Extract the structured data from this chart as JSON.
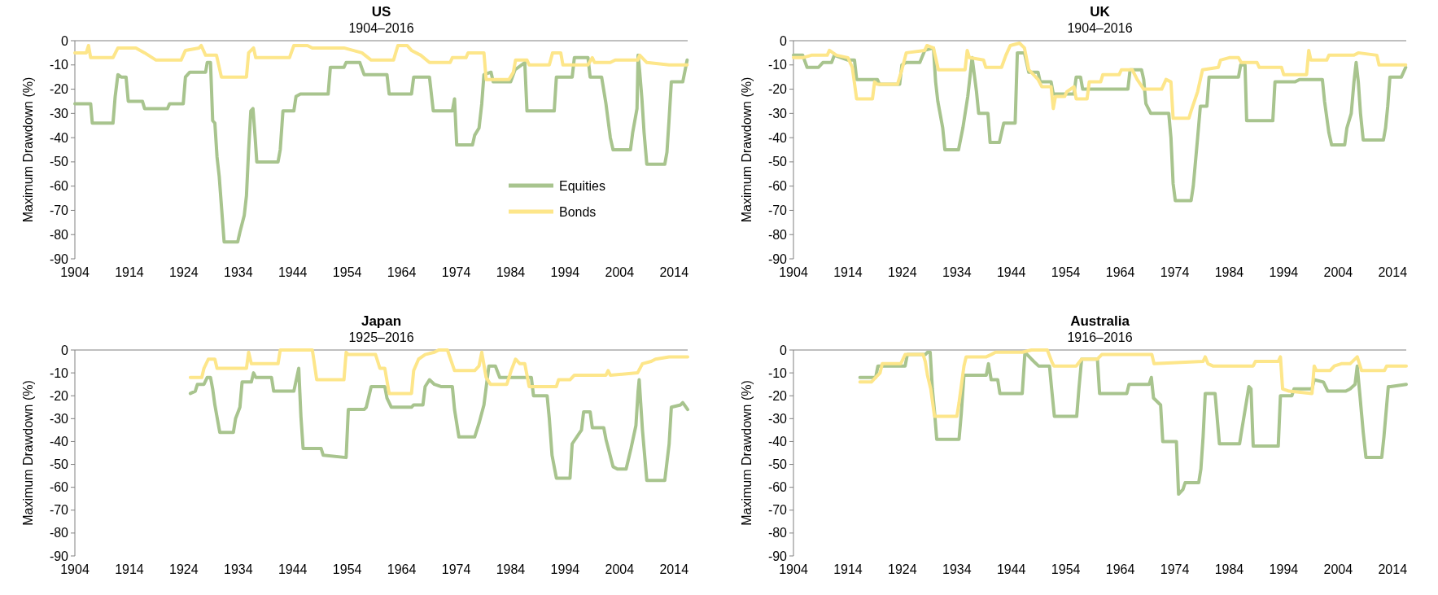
{
  "chart_data": [
    {
      "type": "line",
      "title": "US",
      "subtitle": "1904–2016",
      "ylabel": "Maximum Drawdown (%)",
      "xlim": [
        1904,
        2016.5
      ],
      "xticks": [
        1904,
        1914,
        1924,
        1934,
        1944,
        1954,
        1964,
        1974,
        1984,
        1994,
        2004,
        2014
      ],
      "ylim": [
        -90,
        0
      ],
      "yticks": [
        -90,
        -80,
        -70,
        -60,
        -50,
        -40,
        -30,
        -20,
        -10,
        0
      ],
      "grid": false,
      "legend": "bottom right",
      "line_style": "solid",
      "marker": "none",
      "series": [
        {
          "name": "Equities",
          "color": "#a8c48e",
          "x": [
            1904,
            1906.9,
            1907.2,
            1911,
            1911.4,
            1911.9,
            1912.5,
            1913.4,
            1913.8,
            1916.4,
            1916.8,
            1921,
            1921.4,
            1923.9,
            1924.3,
            1925.1,
            1928,
            1928.3,
            1928.9,
            1929.3,
            1929.7,
            1930.1,
            1930.5,
            1930.9,
            1931.4,
            1933.9,
            1934.3,
            1935.1,
            1935.5,
            1935.9,
            1936.3,
            1936.7,
            1937.1,
            1937.4,
            1941.3,
            1941.7,
            1942.2,
            1944.2,
            1944.6,
            1945.4,
            1950.5,
            1950.9,
            1953.4,
            1953.8,
            1956.3,
            1957.1,
            1961.3,
            1961.7,
            1965.8,
            1966.2,
            1969.1,
            1969.8,
            1973.3,
            1973.7,
            1974.1,
            1977,
            1977.4,
            1978.2,
            1978.7,
            1979.1,
            1980.4,
            1980.8,
            1984,
            1984.8,
            1986.6,
            1987,
            1992,
            1992.4,
            1995.3,
            1995.7,
            1998.2,
            1998.6,
            2000.7,
            2001.5,
            2002.3,
            2002.8,
            2006,
            2006.4,
            2007.2,
            2007.4,
            2007.7,
            2008.1,
            2008.5,
            2009,
            2012.3,
            2012.7,
            2013.1,
            2013.5,
            2015.6,
            2016.4
          ],
          "values": [
            -26,
            -26,
            -34,
            -34,
            -23,
            -14,
            -15,
            -15,
            -25,
            -25,
            -28,
            -28,
            -26,
            -26,
            -15,
            -13,
            -13,
            -9,
            -9,
            -33,
            -34,
            -48,
            -56,
            -68,
            -83,
            -83,
            -79,
            -72,
            -64,
            -45,
            -29,
            -28,
            -40,
            -50,
            -50,
            -45,
            -29,
            -29,
            -23,
            -22,
            -22,
            -11,
            -11,
            -9,
            -9,
            -14,
            -14,
            -22,
            -22,
            -15,
            -15,
            -29,
            -29,
            -24,
            -43,
            -43,
            -39,
            -36,
            -26,
            -14,
            -13,
            -17,
            -17,
            -12,
            -9,
            -29,
            -29,
            -15,
            -15,
            -7,
            -7,
            -15,
            -15,
            -26,
            -40,
            -45,
            -45,
            -38,
            -28,
            -6,
            -13,
            -24,
            -38,
            -51,
            -51,
            -46,
            -32,
            -17,
            -17,
            -8
          ]
        },
        {
          "name": "Bonds",
          "color": "#fde68a",
          "x": [
            1904,
            1906.1,
            1906.5,
            1906.9,
            1911,
            1911.9,
            1915.2,
            1916.8,
            1918.9,
            1923.5,
            1924.3,
            1926.8,
            1927.2,
            1928,
            1930,
            1930.9,
            1935.5,
            1935.9,
            1936.8,
            1937.2,
            1943.4,
            1944.2,
            1946.7,
            1947.6,
            1953.4,
            1956.7,
            1958.4,
            1962.5,
            1963.3,
            1965,
            1965.8,
            1967.5,
            1969.1,
            1972.9,
            1973.3,
            1975.8,
            1976.2,
            1979.1,
            1979.5,
            1983.7,
            1984.5,
            1984.9,
            1987,
            1987.4,
            1991.1,
            1991.7,
            1993.2,
            1993.6,
            1998.2,
            1999,
            1999.4,
            2002.3,
            2003.2,
            2007.3,
            2007.7,
            2009,
            2013.1,
            2016.4
          ],
          "values": [
            -5,
            -5,
            -2,
            -7,
            -7,
            -3,
            -3,
            -5,
            -8,
            -8,
            -4,
            -3,
            -2,
            -6,
            -6,
            -15,
            -15,
            -5,
            -3,
            -7,
            -7,
            -2,
            -2,
            -3,
            -3,
            -5,
            -8,
            -8,
            -2,
            -2,
            -4,
            -6,
            -9,
            -9,
            -7,
            -7,
            -5,
            -5,
            -16,
            -16,
            -13,
            -8,
            -8,
            -10,
            -10,
            -5,
            -5,
            -10,
            -10,
            -7,
            -9,
            -9,
            -8,
            -8,
            -6,
            -9,
            -10,
            -10
          ]
        }
      ]
    },
    {
      "type": "line",
      "title": "UK",
      "subtitle": "1904–2016",
      "ylabel": "Maximum Drawdown (%)",
      "xlim": [
        1904,
        2016.5
      ],
      "xticks": [
        1904,
        1914,
        1924,
        1934,
        1944,
        1954,
        1964,
        1974,
        1984,
        1994,
        2004,
        2014
      ],
      "ylim": [
        -90,
        0
      ],
      "yticks": [
        -90,
        -80,
        -70,
        -60,
        -50,
        -40,
        -30,
        -20,
        -10,
        0
      ],
      "grid": false,
      "legend": false,
      "line_style": "solid",
      "marker": "none",
      "series": [
        {
          "color": "#a8c48e",
          "x": [
            1904,
            1905.7,
            1906.5,
            1908.6,
            1909.4,
            1911,
            1911.5,
            1914,
            1915.2,
            1915.6,
            1919.4,
            1919.8,
            1923.5,
            1923.9,
            1924.7,
            1927.2,
            1928.1,
            1929.7,
            1930.1,
            1930.5,
            1931.4,
            1931.8,
            1934.3,
            1935.1,
            1936,
            1936.8,
            1937.6,
            1938,
            1939.7,
            1940.1,
            1941.8,
            1942.6,
            1944.7,
            1945.1,
            1946.4,
            1947.2,
            1948.9,
            1949.3,
            1951.3,
            1951.7,
            1955.5,
            1955.9,
            1956.7,
            1957.1,
            1965.4,
            1965.8,
            1967.9,
            1968.3,
            1968.7,
            1969.6,
            1972.9,
            1973.3,
            1973.7,
            1974.1,
            1977,
            1977.4,
            1978.2,
            1978.7,
            1979.9,
            1980.3,
            1985.7,
            1986.1,
            1986.9,
            1987.2,
            1992,
            1992.4,
            1996.1,
            1996.9,
            2001.1,
            2001.5,
            2002.3,
            2002.8,
            2005.2,
            2005.6,
            2006.4,
            2006.9,
            2007.3,
            2007.7,
            2008.1,
            2008.6,
            2012.3,
            2012.7,
            2013.1,
            2013.5,
            2015.6,
            2016.4
          ],
          "values": [
            -6,
            -6,
            -11,
            -11,
            -9,
            -9,
            -6,
            -8,
            -8,
            -16,
            -16,
            -18,
            -18,
            -10,
            -9,
            -9,
            -4,
            -3,
            -17,
            -25,
            -36,
            -45,
            -45,
            -36,
            -23,
            -7,
            -21,
            -30,
            -30,
            -42,
            -42,
            -34,
            -34,
            -5,
            -5,
            -13,
            -13,
            -17,
            -17,
            -22,
            -22,
            -15,
            -15,
            -20,
            -20,
            -12,
            -12,
            -16,
            -26,
            -30,
            -30,
            -40,
            -59,
            -66,
            -66,
            -60,
            -40,
            -27,
            -27,
            -15,
            -15,
            -10,
            -10,
            -33,
            -33,
            -17,
            -17,
            -16,
            -16,
            -25,
            -38,
            -43,
            -43,
            -36,
            -30,
            -17,
            -9,
            -17,
            -30,
            -41,
            -41,
            -36,
            -27,
            -15,
            -15,
            -11
          ]
        },
        {
          "color": "#fde68a",
          "x": [
            1904,
            1905.7,
            1907.3,
            1910.2,
            1910.6,
            1911.9,
            1914,
            1914.8,
            1915.6,
            1918.5,
            1918.9,
            1919.4,
            1923.1,
            1923.9,
            1924.7,
            1928.1,
            1928.5,
            1929.7,
            1930.6,
            1935.5,
            1935.9,
            1936.3,
            1938.9,
            1939.3,
            1942.2,
            1943,
            1943.8,
            1945.5,
            1946.4,
            1947.2,
            1948.9,
            1949.6,
            1951.3,
            1951.7,
            1952.1,
            1953.8,
            1954.2,
            1955.5,
            1955.9,
            1957.9,
            1958.3,
            1960.4,
            1960.8,
            1963.8,
            1964.2,
            1966.2,
            1967.1,
            1968.3,
            1971.6,
            1972.4,
            1973.3,
            1973.7,
            1976.6,
            1977,
            1978.2,
            1979.1,
            1982,
            1982.4,
            1984,
            1985.7,
            1986.2,
            1989.1,
            1989.5,
            1993.6,
            1994,
            1998.2,
            1998.6,
            1999,
            2001.9,
            2002.3,
            2006.9,
            2007.7,
            2011.1,
            2011.5,
            2016.4
          ],
          "values": [
            -7,
            -7,
            -6,
            -6,
            -4,
            -6,
            -7,
            -11,
            -24,
            -24,
            -17,
            -18,
            -18,
            -12,
            -5,
            -4,
            -2,
            -3,
            -12,
            -12,
            -4,
            -7,
            -8,
            -11,
            -11,
            -6,
            -2,
            -1,
            -3,
            -12,
            -16,
            -19,
            -19,
            -28,
            -23,
            -23,
            -21,
            -19,
            -24,
            -24,
            -17,
            -17,
            -14,
            -14,
            -12,
            -12,
            -16,
            -20,
            -20,
            -16,
            -17,
            -32,
            -32,
            -29,
            -21,
            -12,
            -11,
            -8,
            -7,
            -7,
            -9,
            -9,
            -11,
            -11,
            -14,
            -14,
            -4,
            -8,
            -8,
            -6,
            -6,
            -5,
            -6,
            -10,
            -10
          ]
        }
      ]
    },
    {
      "type": "line",
      "title": "Japan",
      "subtitle": "1925–2016",
      "ylabel": "Maximum Drawdown (%)",
      "xlim": [
        1904,
        2016.5
      ],
      "xticks": [
        1904,
        1914,
        1924,
        1934,
        1944,
        1954,
        1964,
        1974,
        1984,
        1994,
        2004,
        2014
      ],
      "ylim": [
        -90,
        0
      ],
      "yticks": [
        -90,
        -80,
        -70,
        -60,
        -50,
        -40,
        -30,
        -20,
        -10,
        0
      ],
      "grid": false,
      "legend": false,
      "line_style": "solid",
      "marker": "none",
      "series": [
        {
          "color": "#a8c48e",
          "x": [
            1925.2,
            1926.1,
            1926.5,
            1927.7,
            1928.3,
            1928.9,
            1929.3,
            1929.7,
            1930.6,
            1933.1,
            1933.5,
            1934.3,
            1934.7,
            1936.4,
            1936.8,
            1937.2,
            1940.1,
            1940.5,
            1944.2,
            1945.1,
            1945.5,
            1945.9,
            1949.2,
            1949.6,
            1953.8,
            1954.2,
            1957.1,
            1957.5,
            1958.4,
            1960.9,
            1961.3,
            1962.1,
            1965.8,
            1966.2,
            1967.9,
            1968.3,
            1969.1,
            1970,
            1971.2,
            1973.3,
            1973.7,
            1974.5,
            1977.4,
            1978.2,
            1979.1,
            1980,
            1981.2,
            1982,
            1987.8,
            1988.2,
            1990.7,
            1991.1,
            1991.6,
            1992.4,
            1994.9,
            1995.3,
            1997,
            1997.4,
            1998.6,
            1999,
            2001.1,
            2001.5,
            2002.8,
            2003.6,
            2005.2,
            2006.1,
            2007,
            2007.4,
            2007.6,
            2008.2,
            2009,
            2012.3,
            2013.1,
            2013.5,
            2015.2,
            2015.6,
            2016.5
          ],
          "values": [
            -19,
            -18,
            -15,
            -15,
            -12,
            -12,
            -17,
            -24,
            -36,
            -36,
            -30,
            -25,
            -14,
            -14,
            -10,
            -12,
            -12,
            -18,
            -18,
            -8,
            -29,
            -43,
            -43,
            -46,
            -47,
            -26,
            -26,
            -25,
            -16,
            -16,
            -21,
            -25,
            -25,
            -24,
            -24,
            -16,
            -13,
            -15,
            -16,
            -16,
            -26,
            -38,
            -38,
            -32,
            -24,
            -7,
            -7,
            -12,
            -12,
            -20,
            -20,
            -30,
            -46,
            -56,
            -56,
            -41,
            -35,
            -27,
            -27,
            -34,
            -34,
            -39,
            -51,
            -52,
            -52,
            -43,
            -33,
            -18,
            -13,
            -35,
            -57,
            -57,
            -41,
            -25,
            -24,
            -23,
            -26
          ]
        },
        {
          "color": "#fde68a",
          "x": [
            1925.2,
            1927.3,
            1927.7,
            1928.5,
            1929.7,
            1930.1,
            1935.5,
            1935.9,
            1936.4,
            1941.3,
            1941.7,
            1947.6,
            1948.4,
            1953.4,
            1953.8,
            1954.2,
            1959.2,
            1960,
            1960.9,
            1961.7,
            1965.8,
            1966.2,
            1967.1,
            1968.3,
            1970,
            1970.8,
            1972.4,
            1973.7,
            1977.4,
            1978.2,
            1978.7,
            1979.5,
            1980.3,
            1983.3,
            1984.1,
            1984.9,
            1985.7,
            1986.6,
            1987.4,
            1992.4,
            1992.8,
            1994.9,
            1995.7,
            2001.5,
            2001.9,
            2002.3,
            2007.3,
            2008.2,
            2009.8,
            2010.6,
            2013.1,
            2016.5
          ],
          "values": [
            -12,
            -12,
            -8,
            -4,
            -4,
            -8,
            -8,
            -1,
            -6,
            -6,
            0,
            0,
            -13,
            -13,
            -1,
            -2,
            -2,
            -8,
            -8,
            -19,
            -19,
            -9,
            -4,
            -2,
            -1,
            0,
            0,
            -9,
            -9,
            -7,
            -1,
            -12,
            -15,
            -15,
            -9,
            -4,
            -6,
            -6,
            -16,
            -16,
            -13,
            -13,
            -11,
            -11,
            -9,
            -11,
            -10,
            -6,
            -5,
            -4,
            -3,
            -3
          ]
        }
      ]
    },
    {
      "type": "line",
      "title": "Australia",
      "subtitle": "1916–2016",
      "ylabel": "Maximum Drawdown (%)",
      "xlim": [
        1904,
        2016.5
      ],
      "xticks": [
        1904,
        1914,
        1924,
        1934,
        1944,
        1954,
        1964,
        1974,
        1984,
        1994,
        2004,
        2014
      ],
      "ylim": [
        -90,
        0
      ],
      "yticks": [
        -90,
        -80,
        -70,
        -60,
        -50,
        -40,
        -30,
        -20,
        -10,
        0
      ],
      "grid": false,
      "legend": false,
      "line_style": "solid",
      "marker": "none",
      "series": [
        {
          "color": "#a8c48e",
          "x": [
            1916.2,
            1919.1,
            1919.5,
            1924.5,
            1924.9,
            1928.2,
            1928.6,
            1929.1,
            1929.5,
            1929.9,
            1930.3,
            1934.4,
            1934.8,
            1935.3,
            1939.4,
            1939.8,
            1940.3,
            1941.5,
            1941.9,
            1946,
            1946.5,
            1947.7,
            1949,
            1951,
            1951.4,
            1951.9,
            1956,
            1956.4,
            1956.9,
            1959.8,
            1960.2,
            1965.2,
            1965.6,
            1969.3,
            1969.7,
            1970.1,
            1971.4,
            1971.8,
            1974.3,
            1974.7,
            1975.5,
            1975.9,
            1978.4,
            1978.8,
            1979.2,
            1979.6,
            1981.4,
            1981.8,
            1982.2,
            1985.9,
            1986.3,
            1987.2,
            1987.6,
            1988,
            1988.4,
            1993,
            1993.4,
            1995.5,
            1995.9,
            1999.2,
            1999.6,
            2001.3,
            2002.1,
            2005.4,
            2006.2,
            2007.1,
            2007.5,
            2008,
            2008.6,
            2009.1,
            2012,
            2012.4,
            2013.2,
            2013.6,
            2016.5
          ],
          "values": [
            -12,
            -12,
            -7,
            -7,
            -2,
            -2,
            -1,
            -1,
            -17,
            -27,
            -39,
            -39,
            -28,
            -11,
            -11,
            -6,
            -13,
            -13,
            -19,
            -19,
            -1,
            -4,
            -7,
            -7,
            -17,
            -29,
            -29,
            -17,
            -4,
            -4,
            -19,
            -19,
            -15,
            -15,
            -12,
            -21,
            -24,
            -40,
            -40,
            -63,
            -61,
            -58,
            -58,
            -52,
            -38,
            -19,
            -19,
            -30,
            -41,
            -41,
            -35,
            -22,
            -16,
            -17,
            -42,
            -42,
            -20,
            -20,
            -17,
            -17,
            -13,
            -14,
            -18,
            -18,
            -17,
            -15,
            -7,
            -20,
            -36,
            -47,
            -47,
            -38,
            -16,
            -16,
            -15
          ]
        },
        {
          "color": "#fde68a",
          "x": [
            1916.2,
            1918.3,
            1919.1,
            1919.9,
            1920.3,
            1923.7,
            1924.5,
            1927.8,
            1928.2,
            1928.6,
            1929.2,
            1929.9,
            1934,
            1934.4,
            1935.3,
            1935.7,
            1939.4,
            1940.3,
            1941.1,
            1946,
            1947.7,
            1950.6,
            1951.4,
            1951.8,
            1955.9,
            1956.9,
            1959.8,
            1960.6,
            1969.8,
            1970.2,
            1979.2,
            1979.6,
            1980.1,
            1981,
            1988.4,
            1988.8,
            1993,
            1993.4,
            1993.8,
            1995,
            1999.2,
            1999.6,
            2000,
            2002.5,
            2003.3,
            2004.6,
            2006.2,
            2007.5,
            2008.3,
            2012.5,
            2012.9,
            2016.5
          ],
          "values": [
            -14,
            -14,
            -12,
            -10,
            -6,
            -6,
            -2,
            -2,
            -5,
            -11,
            -17,
            -29,
            -29,
            -23,
            -7,
            -3,
            -3,
            -2,
            -1,
            -1,
            0,
            0,
            -5,
            -7,
            -7,
            -4,
            -4,
            -2,
            -2,
            -6,
            -5,
            -3,
            -6,
            -7,
            -7,
            -5,
            -5,
            -3,
            -17,
            -18,
            -19,
            -7,
            -9,
            -9,
            -7,
            -6,
            -6,
            -3,
            -9,
            -9,
            -7,
            -7
          ]
        }
      ]
    }
  ]
}
